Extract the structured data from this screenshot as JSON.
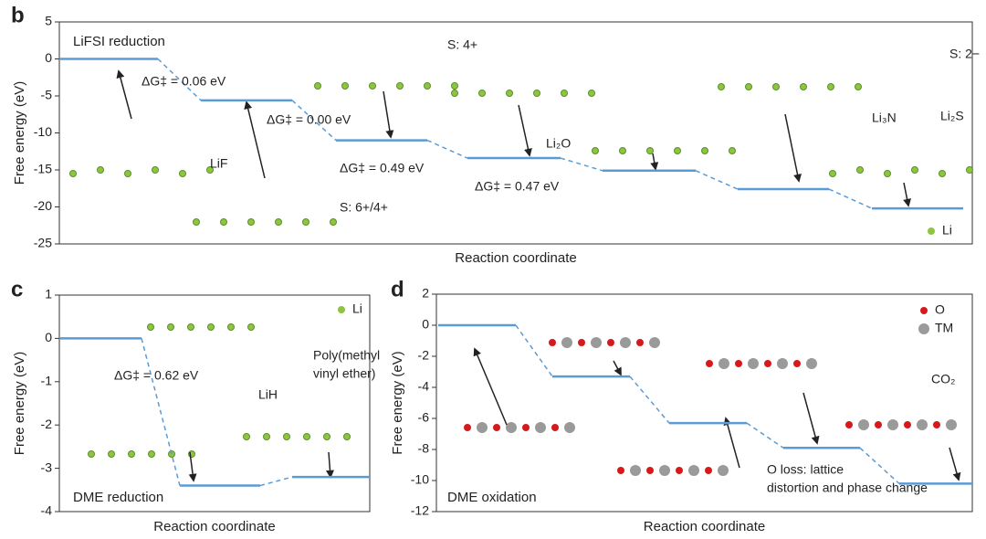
{
  "chart_data": [
    {
      "type": "energy_diagram",
      "panel_label": "b",
      "title": "LiFSI reduction",
      "ylabel": "Free energy (eV)",
      "xlabel": "Reaction coordinate",
      "ylim": [
        5,
        -25
      ],
      "yticks": [
        5,
        0,
        -5,
        -10,
        -15,
        -20,
        -25
      ],
      "levels": [
        0,
        -5.6,
        -11,
        -13.4,
        -15.1,
        -17.6,
        -20.2
      ],
      "color": "#5b9bd5",
      "barrier_labels": [
        "ΔG‡ = 0.06 eV",
        "ΔG‡ = 0.00 eV",
        "ΔG‡ = 0.49 eV",
        "ΔG‡ = 0.47 eV"
      ],
      "annotations": [
        "LiF",
        "S: 6+/4+",
        "S: 4+",
        "Li₂O",
        "Li₃N",
        "Li₂S",
        "S: 2−"
      ],
      "legend": [
        {
          "name": "Li",
          "color": "#8cc63f"
        }
      ]
    },
    {
      "type": "energy_diagram",
      "panel_label": "c",
      "title": "DME reduction",
      "ylabel": "Free energy (eV)",
      "xlabel": "Reaction coordinate",
      "ylim": [
        1,
        -4
      ],
      "yticks": [
        1,
        0,
        -1,
        -2,
        -3,
        -4
      ],
      "levels": [
        0,
        -3.4,
        -3.2
      ],
      "color": "#5b9bd5",
      "barrier_labels": [
        "ΔG‡ = 0.62 eV"
      ],
      "annotations": [
        "LiH",
        "Poly(methyl",
        "vinyl ether)"
      ],
      "legend": [
        {
          "name": "Li",
          "color": "#8cc63f"
        }
      ]
    },
    {
      "type": "energy_diagram",
      "panel_label": "d",
      "title": "DME oxidation",
      "ylabel": "Free energy (eV)",
      "xlabel": "Reaction coordinate",
      "ylim": [
        2,
        -12
      ],
      "yticks": [
        2,
        0,
        -2,
        -4,
        -6,
        -8,
        -10,
        -12
      ],
      "levels": [
        0,
        -3.3,
        -6.3,
        -7.9,
        -10.2
      ],
      "color": "#5b9bd5",
      "barrier_labels": [],
      "annotations": [
        "CO₂",
        "O loss: lattice",
        "distortion and phase change"
      ],
      "legend": [
        {
          "name": "O",
          "color": "#d7191c"
        },
        {
          "name": "TM",
          "color": "#9a9a9a"
        }
      ]
    }
  ]
}
